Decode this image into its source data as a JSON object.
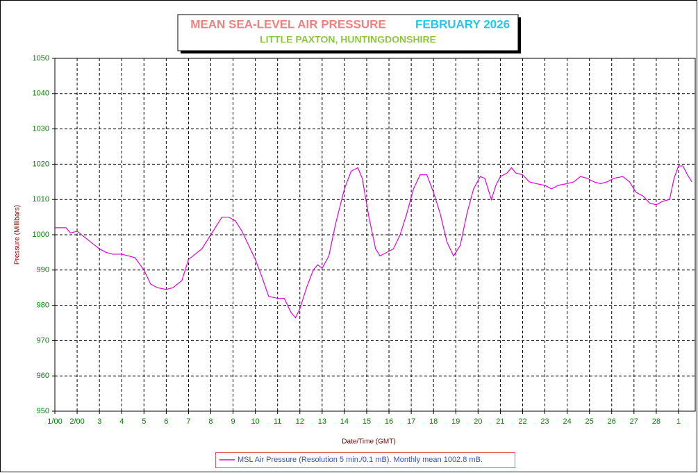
{
  "chart_data": {
    "type": "line",
    "title": "MEAN SEA-LEVEL AIR PRESSURE",
    "title_color": "#f08080",
    "period": "FEBRUARY 2026",
    "period_color": "#1ec8f0",
    "subtitle": "LITTLE PAXTON, HUNTINGDONSHIRE",
    "subtitle_color": "#8dc63f",
    "x_label": "Date/Time (GMT)",
    "y_label": "Pressure (Millibars)",
    "xlim": [
      0,
      28.75
    ],
    "ylim": [
      950,
      1050
    ],
    "xticks": [
      {
        "value": 0,
        "label": "1/00"
      },
      {
        "value": 1,
        "label": "2/00"
      },
      {
        "value": 2,
        "label": "3"
      },
      {
        "value": 3,
        "label": "4"
      },
      {
        "value": 4,
        "label": "5"
      },
      {
        "value": 5,
        "label": "6"
      },
      {
        "value": 6,
        "label": "7"
      },
      {
        "value": 7,
        "label": "8"
      },
      {
        "value": 8,
        "label": "9"
      },
      {
        "value": 9,
        "label": "10"
      },
      {
        "value": 10,
        "label": "11"
      },
      {
        "value": 11,
        "label": "12"
      },
      {
        "value": 12,
        "label": "13"
      },
      {
        "value": 13,
        "label": "14"
      },
      {
        "value": 14,
        "label": "15"
      },
      {
        "value": 15,
        "label": "16"
      },
      {
        "value": 16,
        "label": "17"
      },
      {
        "value": 17,
        "label": "18"
      },
      {
        "value": 18,
        "label": "19"
      },
      {
        "value": 19,
        "label": "20"
      },
      {
        "value": 20,
        "label": "21"
      },
      {
        "value": 21,
        "label": "22"
      },
      {
        "value": 22,
        "label": "23"
      },
      {
        "value": 23,
        "label": "24"
      },
      {
        "value": 24,
        "label": "25"
      },
      {
        "value": 25,
        "label": "26"
      },
      {
        "value": 26,
        "label": "27"
      },
      {
        "value": 27,
        "label": "28"
      },
      {
        "value": 28,
        "label": "1"
      }
    ],
    "yticks": [
      950,
      960,
      970,
      980,
      990,
      1000,
      1010,
      1020,
      1030,
      1040,
      1050
    ],
    "grid": true,
    "x": [
      0,
      0.5,
      0.7,
      1,
      1.3,
      1.6,
      2,
      2.3,
      2.6,
      3,
      3.3,
      3.6,
      4,
      4.3,
      4.6,
      5,
      5.3,
      5.7,
      6,
      6.3,
      6.6,
      7,
      7.3,
      7.5,
      7.8,
      8.1,
      8.4,
      8.7,
      9,
      9.3,
      9.6,
      10,
      10.3,
      10.6,
      10.8,
      11,
      11.3,
      11.6,
      11.8,
      12,
      12.3,
      12.6,
      13,
      13.3,
      13.6,
      13.8,
      14.1,
      14.4,
      14.6,
      14.9,
      15.2,
      15.5,
      15.8,
      16.1,
      16.4,
      16.7,
      17,
      17.3,
      17.6,
      17.9,
      18.2,
      18.5,
      18.8,
      19.1,
      19.3,
      19.5,
      19.6,
      19.8,
      20,
      20.3,
      20.5,
      20.7,
      21,
      21.3,
      21.6,
      22,
      22.3,
      22.6,
      23,
      23.3,
      23.6,
      23.9,
      24.2,
      24.5,
      24.8,
      25.1,
      25.5,
      25.8,
      26.1,
      26.4,
      26.7,
      27,
      27.3,
      27.6,
      27.8,
      28,
      28.2,
      28.4,
      28.6
    ],
    "series": [
      {
        "name": "MSL Air Pressure (Resolution 5 min./0.1 mB). Monthly mean 1002.8 mB.",
        "color": "#e000e0",
        "values": [
          1002,
          1002,
          1000.5,
          1001,
          999.5,
          998,
          996,
          995,
          994.5,
          994.5,
          994,
          993.5,
          990,
          986,
          985,
          984.5,
          985,
          987,
          993,
          994.5,
          996,
          1000,
          1003,
          1005,
          1005,
          1004,
          1001,
          997,
          993,
          988,
          982.5,
          982,
          982,
          978,
          976.5,
          979,
          985,
          990,
          991.5,
          990.5,
          994,
          1003,
          1013,
          1018,
          1019,
          1016,
          1005,
          996,
          994,
          995,
          996,
          1000,
          1006,
          1013,
          1017,
          1017,
          1012,
          1006,
          998,
          994,
          997,
          1006,
          1013,
          1016.5,
          1016,
          1012,
          1010,
          1014,
          1016.5,
          1017.5,
          1019,
          1017.5,
          1017,
          1015,
          1014.5,
          1014,
          1013,
          1014,
          1014.5,
          1015,
          1016.5,
          1016,
          1015,
          1014.5,
          1015,
          1016,
          1016.5,
          1015,
          1012,
          1011,
          1009,
          1008.5,
          1009.5,
          1010,
          1016,
          1019.5,
          1019.5,
          1017,
          1015
        ]
      }
    ]
  }
}
